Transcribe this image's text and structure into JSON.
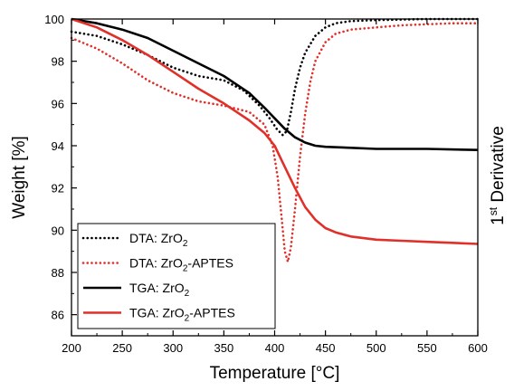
{
  "chart_data": {
    "type": "line",
    "xlabel": "Temperature [°C]",
    "ylabel": "Weight [%]",
    "y2label": {
      "base": "1",
      "sup": "st",
      "rest": " Derivative"
    },
    "xlim": [
      200,
      600
    ],
    "ylim": [
      85,
      100
    ],
    "xticks": [
      200,
      250,
      300,
      350,
      400,
      450,
      500,
      550,
      600
    ],
    "yticks": [
      86,
      88,
      90,
      92,
      94,
      96,
      98,
      100
    ],
    "grid": false,
    "legend_position": "bottom-left",
    "series": [
      {
        "name": "DTA: ZrO2",
        "label_parts": {
          "pre": "DTA: ZrO",
          "sub": "2",
          "post": ""
        },
        "color": "#000000",
        "dash": "dotted",
        "x": [
          200,
          225,
          250,
          275,
          300,
          325,
          350,
          370,
          385,
          395,
          402,
          408,
          412,
          416,
          420,
          425,
          430,
          440,
          450,
          460,
          475,
          500,
          550,
          600
        ],
        "y": [
          99.4,
          99.2,
          98.8,
          98.3,
          97.7,
          97.3,
          97.1,
          96.6,
          95.9,
          95.3,
          94.8,
          94.5,
          94.7,
          95.6,
          96.7,
          97.7,
          98.4,
          99.2,
          99.6,
          99.8,
          99.9,
          99.95,
          100.0,
          100.0
        ]
      },
      {
        "name": "DTA: ZrO2-APTES",
        "label_parts": {
          "pre": "DTA: ZrO",
          "sub": "2",
          "post": "-APTES"
        },
        "color": "#e0302a",
        "dash": "dotted",
        "x": [
          200,
          225,
          250,
          275,
          300,
          325,
          350,
          375,
          390,
          398,
          403,
          407,
          410,
          413,
          416,
          420,
          425,
          430,
          435,
          440,
          450,
          460,
          475,
          500,
          525,
          550,
          575,
          600
        ],
        "y": [
          99.1,
          98.6,
          97.9,
          97.1,
          96.5,
          96.1,
          95.9,
          95.6,
          95.0,
          94.0,
          92.5,
          90.5,
          89.0,
          88.5,
          89.2,
          91.0,
          93.5,
          95.5,
          97.0,
          98.0,
          98.9,
          99.3,
          99.5,
          99.6,
          99.7,
          99.75,
          99.8,
          99.8
        ]
      },
      {
        "name": "TGA: ZrO2",
        "label_parts": {
          "pre": "TGA: ZrO",
          "sub": "2",
          "post": ""
        },
        "color": "#000000",
        "dash": "solid",
        "x": [
          200,
          225,
          250,
          275,
          300,
          325,
          350,
          375,
          390,
          400,
          410,
          420,
          430,
          440,
          450,
          475,
          500,
          550,
          600
        ],
        "y": [
          100.0,
          99.8,
          99.5,
          99.1,
          98.5,
          97.9,
          97.3,
          96.5,
          95.8,
          95.3,
          94.8,
          94.4,
          94.15,
          94.0,
          93.95,
          93.9,
          93.85,
          93.85,
          93.8
        ]
      },
      {
        "name": "TGA: ZrO2-APTES",
        "label_parts": {
          "pre": "TGA: ZrO",
          "sub": "2",
          "post": "-APTES"
        },
        "color": "#e0302a",
        "dash": "solid",
        "x": [
          200,
          225,
          250,
          275,
          300,
          325,
          350,
          375,
          390,
          400,
          410,
          420,
          430,
          440,
          450,
          460,
          475,
          500,
          525,
          550,
          575,
          600
        ],
        "y": [
          100.0,
          99.6,
          99.0,
          98.3,
          97.5,
          96.7,
          96.0,
          95.2,
          94.6,
          94.0,
          93.0,
          92.0,
          91.1,
          90.5,
          90.1,
          89.9,
          89.7,
          89.55,
          89.5,
          89.45,
          89.4,
          89.35
        ]
      }
    ]
  }
}
